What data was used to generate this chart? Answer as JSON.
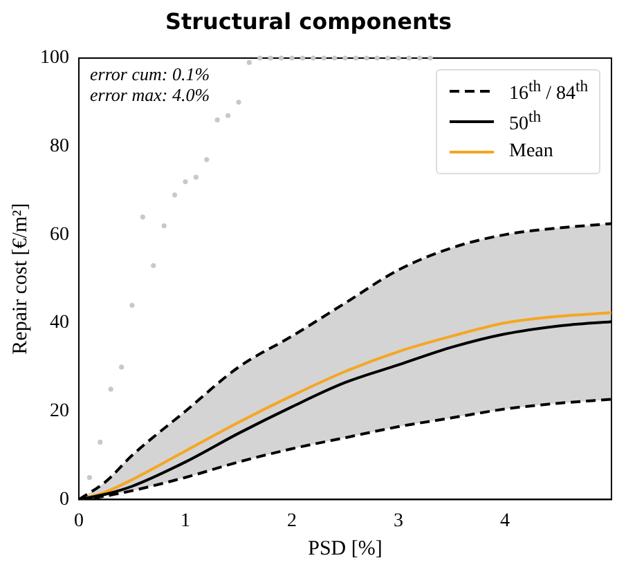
{
  "chart_data": {
    "type": "line",
    "title": "Structural components",
    "xlabel": "PSD [%]",
    "ylabel": "Repair cost [€/m²]",
    "annotations": [
      "error cum: 0.1%",
      "error max: 4.0%"
    ],
    "x": [
      0,
      0.25,
      0.5,
      1,
      1.5,
      2,
      2.5,
      3,
      3.5,
      4,
      4.5,
      5
    ],
    "xlim": [
      0,
      5
    ],
    "xticks": [
      0,
      1,
      2,
      3,
      4
    ],
    "ylim": [
      0,
      100
    ],
    "yticks": [
      0,
      20,
      40,
      60,
      80,
      100
    ],
    "grid": false,
    "legend": "top right",
    "series": [
      {
        "type": "scatter",
        "marker": "circle",
        "color": "#c8c8c8",
        "x": [
          0.1,
          0.2,
          0.3,
          0.4,
          0.5,
          0.6,
          0.7,
          0.8,
          0.9,
          1.0,
          1.1,
          1.2,
          1.3,
          1.4,
          1.5,
          1.6,
          1.7,
          1.8,
          1.9,
          2.0,
          2.1,
          2.2,
          2.3,
          2.4,
          2.5,
          2.6,
          2.7,
          2.8,
          2.9,
          3.0,
          3.1,
          3.2,
          3.3
        ],
        "values": [
          5,
          13,
          25,
          30,
          44,
          64,
          53,
          62,
          69,
          72,
          73,
          77,
          86,
          87,
          90,
          99,
          100,
          100,
          100,
          100,
          100,
          100,
          100,
          100,
          100,
          100,
          100,
          100,
          100,
          100,
          100,
          100,
          100
        ]
      },
      {
        "marker": "none",
        "name": "16$^{th}$ / 84$^{th}$",
        "color": "#000000",
        "line_style": "dashed",
        "values": [
          0,
          4,
          10,
          20,
          30,
          37,
          44.5,
          52,
          57,
          60,
          61.5,
          62.5
        ]
      },
      {
        "marker": "none",
        "color": "#000000",
        "line_style": "dashed",
        "values": [
          0,
          0.8,
          2,
          5,
          8.5,
          11.5,
          14,
          16.5,
          18.5,
          20.5,
          21.8,
          22.7
        ]
      },
      {
        "marker": "none",
        "name": "50$^{th}$",
        "color": "#000000",
        "line_style": "solid",
        "values": [
          0,
          1.2,
          3,
          8.5,
          15,
          21,
          26.5,
          30.5,
          34.5,
          37.5,
          39.3,
          40.3
        ],
        "lower": [
          0,
          0.8,
          2,
          5,
          8.5,
          11.5,
          14,
          16.5,
          18.5,
          20.5,
          21.8,
          22.7
        ],
        "upper": [
          0,
          4,
          10,
          20,
          30,
          37,
          44.5,
          52,
          57,
          60,
          61.5,
          62.5
        ]
      },
      {
        "marker": "none",
        "name": "Mean",
        "color": "#f5a623",
        "line_style": "solid",
        "values": [
          0,
          1.7,
          4.5,
          11,
          17.5,
          23.5,
          29,
          33.5,
          37,
          40,
          41.5,
          42.3
        ]
      }
    ]
  }
}
